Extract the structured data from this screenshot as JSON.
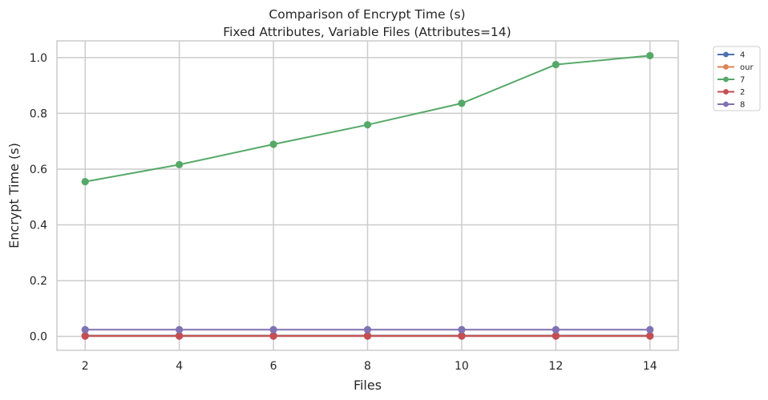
{
  "chart_data": {
    "type": "line",
    "title": "Comparison of Encrypt Time (s)",
    "subtitle": "Fixed Attributes, Variable Files (Attributes=14)",
    "xlabel": "Files",
    "ylabel": "Encrypt Time (s)",
    "x": [
      2,
      4,
      6,
      8,
      10,
      12,
      14
    ],
    "x_ticks": [
      2,
      4,
      6,
      8,
      10,
      12,
      14
    ],
    "y_ticks": [
      0.0,
      0.2,
      0.4,
      0.6,
      0.8,
      1.0
    ],
    "y_tick_labels": [
      "0.0",
      "0.2",
      "0.4",
      "0.6",
      "0.8",
      "1.0"
    ],
    "xlim": [
      1.4,
      14.6
    ],
    "ylim": [
      -0.05,
      1.06
    ],
    "grid": true,
    "legend_position": "outside-top-right",
    "series": [
      {
        "name": "4",
        "color": "#4c72b0",
        "values": [
          0.003,
          0.003,
          0.003,
          0.003,
          0.003,
          0.003,
          0.003
        ]
      },
      {
        "name": "our",
        "color": "#dd8452",
        "values": [
          0.002,
          0.002,
          0.002,
          0.002,
          0.002,
          0.002,
          0.002
        ]
      },
      {
        "name": "7",
        "color": "#55a868",
        "values": [
          0.555,
          0.616,
          0.689,
          0.759,
          0.836,
          0.975,
          1.007
        ]
      },
      {
        "name": "2",
        "color": "#c44e52",
        "values": [
          0.001,
          0.001,
          0.001,
          0.001,
          0.001,
          0.001,
          0.001
        ]
      },
      {
        "name": "8",
        "color": "#8172b3",
        "values": [
          0.024,
          0.024,
          0.024,
          0.024,
          0.024,
          0.024,
          0.024
        ]
      }
    ]
  }
}
